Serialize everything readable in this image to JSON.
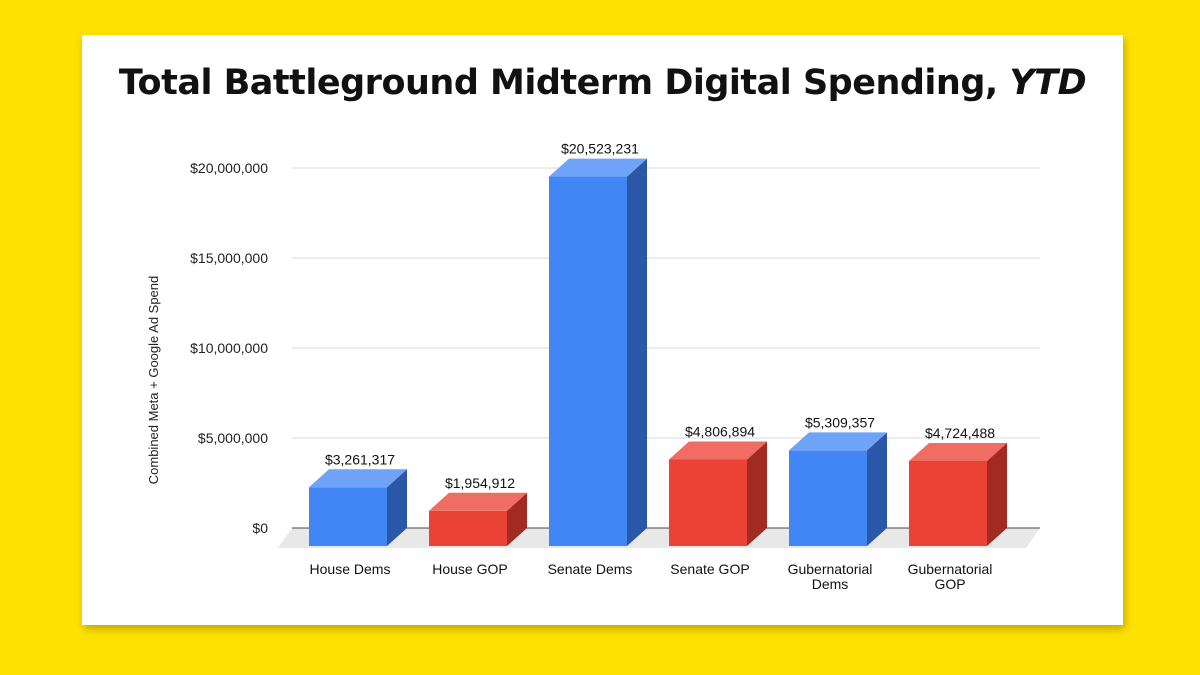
{
  "title": {
    "main": "Total Battleground Midterm Digital Spending, ",
    "emphasis": "YTD"
  },
  "chart_data": {
    "type": "bar",
    "title": "Total Battleground Midterm Digital Spending, YTD",
    "ylabel": "Combined Meta + Google Ad Spend",
    "xlabel": "",
    "ylim": [
      0,
      20000000
    ],
    "yticks": [
      {
        "value": 0,
        "label": "$0"
      },
      {
        "value": 5000000,
        "label": "$5,000,000"
      },
      {
        "value": 10000000,
        "label": "$10,000,000"
      },
      {
        "value": 15000000,
        "label": "$15,000,000"
      },
      {
        "value": 20000000,
        "label": "$20,000,000"
      }
    ],
    "categories": [
      [
        "House Dems"
      ],
      [
        "House GOP"
      ],
      [
        "Senate Dems"
      ],
      [
        "Senate GOP"
      ],
      [
        "Gubernatorial",
        "Dems"
      ],
      [
        "Gubernatorial",
        "GOP"
      ]
    ],
    "values": [
      3261317,
      1954912,
      20523231,
      4806894,
      5309357,
      4724488
    ],
    "value_labels": [
      "$3,261,317",
      "$1,954,912",
      "$20,523,231",
      "$4,806,894",
      "$5,309,357",
      "$4,724,488"
    ],
    "party": [
      "dem",
      "gop",
      "dem",
      "gop",
      "dem",
      "gop"
    ],
    "colors": {
      "dem_front": "#4285F4",
      "dem_top": "#6FA3F7",
      "dem_side": "#2B57A8",
      "gop_front": "#EA4335",
      "gop_top": "#EF6D62",
      "gop_side": "#A32A21",
      "grid": "#D9D9D9",
      "floor": "#E8E8E8"
    },
    "grid": true,
    "legend": "none"
  }
}
